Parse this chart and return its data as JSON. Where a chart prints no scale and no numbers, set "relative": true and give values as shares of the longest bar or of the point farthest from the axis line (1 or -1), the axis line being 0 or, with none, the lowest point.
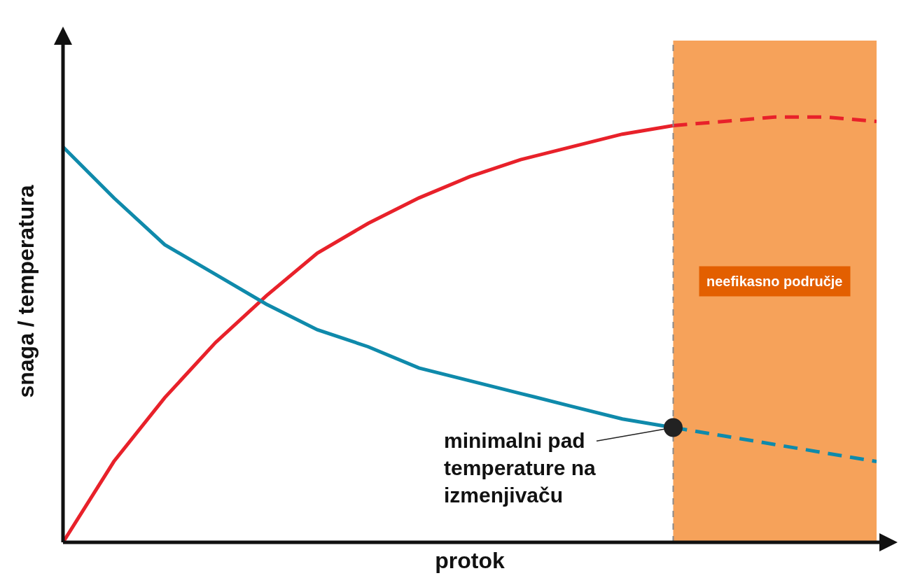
{
  "chart_data": {
    "type": "line",
    "relative": true,
    "xlabel": "protok",
    "ylabel": "snaga / temperatura",
    "categories": [
      null,
      null,
      null,
      null,
      null,
      null,
      null,
      null,
      null,
      null,
      null,
      null,
      null,
      null,
      null,
      null,
      null
    ],
    "series": [
      {
        "color": "#e8212a",
        "line_style": "dashed",
        "values": [
          0,
          0.19,
          0.34,
          0.47,
          0.58,
          0.68,
          0.75,
          0.81,
          0.86,
          0.9,
          0.93,
          0.96,
          0.98,
          0.99,
          1,
          1,
          0.99
        ]
      },
      {
        "color": "#0f8aab",
        "line_style": "dashed",
        "values": [
          0.93,
          0.81,
          0.7,
          0.63,
          0.56,
          0.5,
          0.46,
          0.41,
          0.38,
          0.35,
          0.32,
          0.29,
          0.27,
          0.25,
          0.23,
          0.21,
          0.19
        ]
      }
    ],
    "annotations": [
      "neefikasno područje",
      "minimalni pad\ntemperature na\nizmenjivaču"
    ]
  }
}
